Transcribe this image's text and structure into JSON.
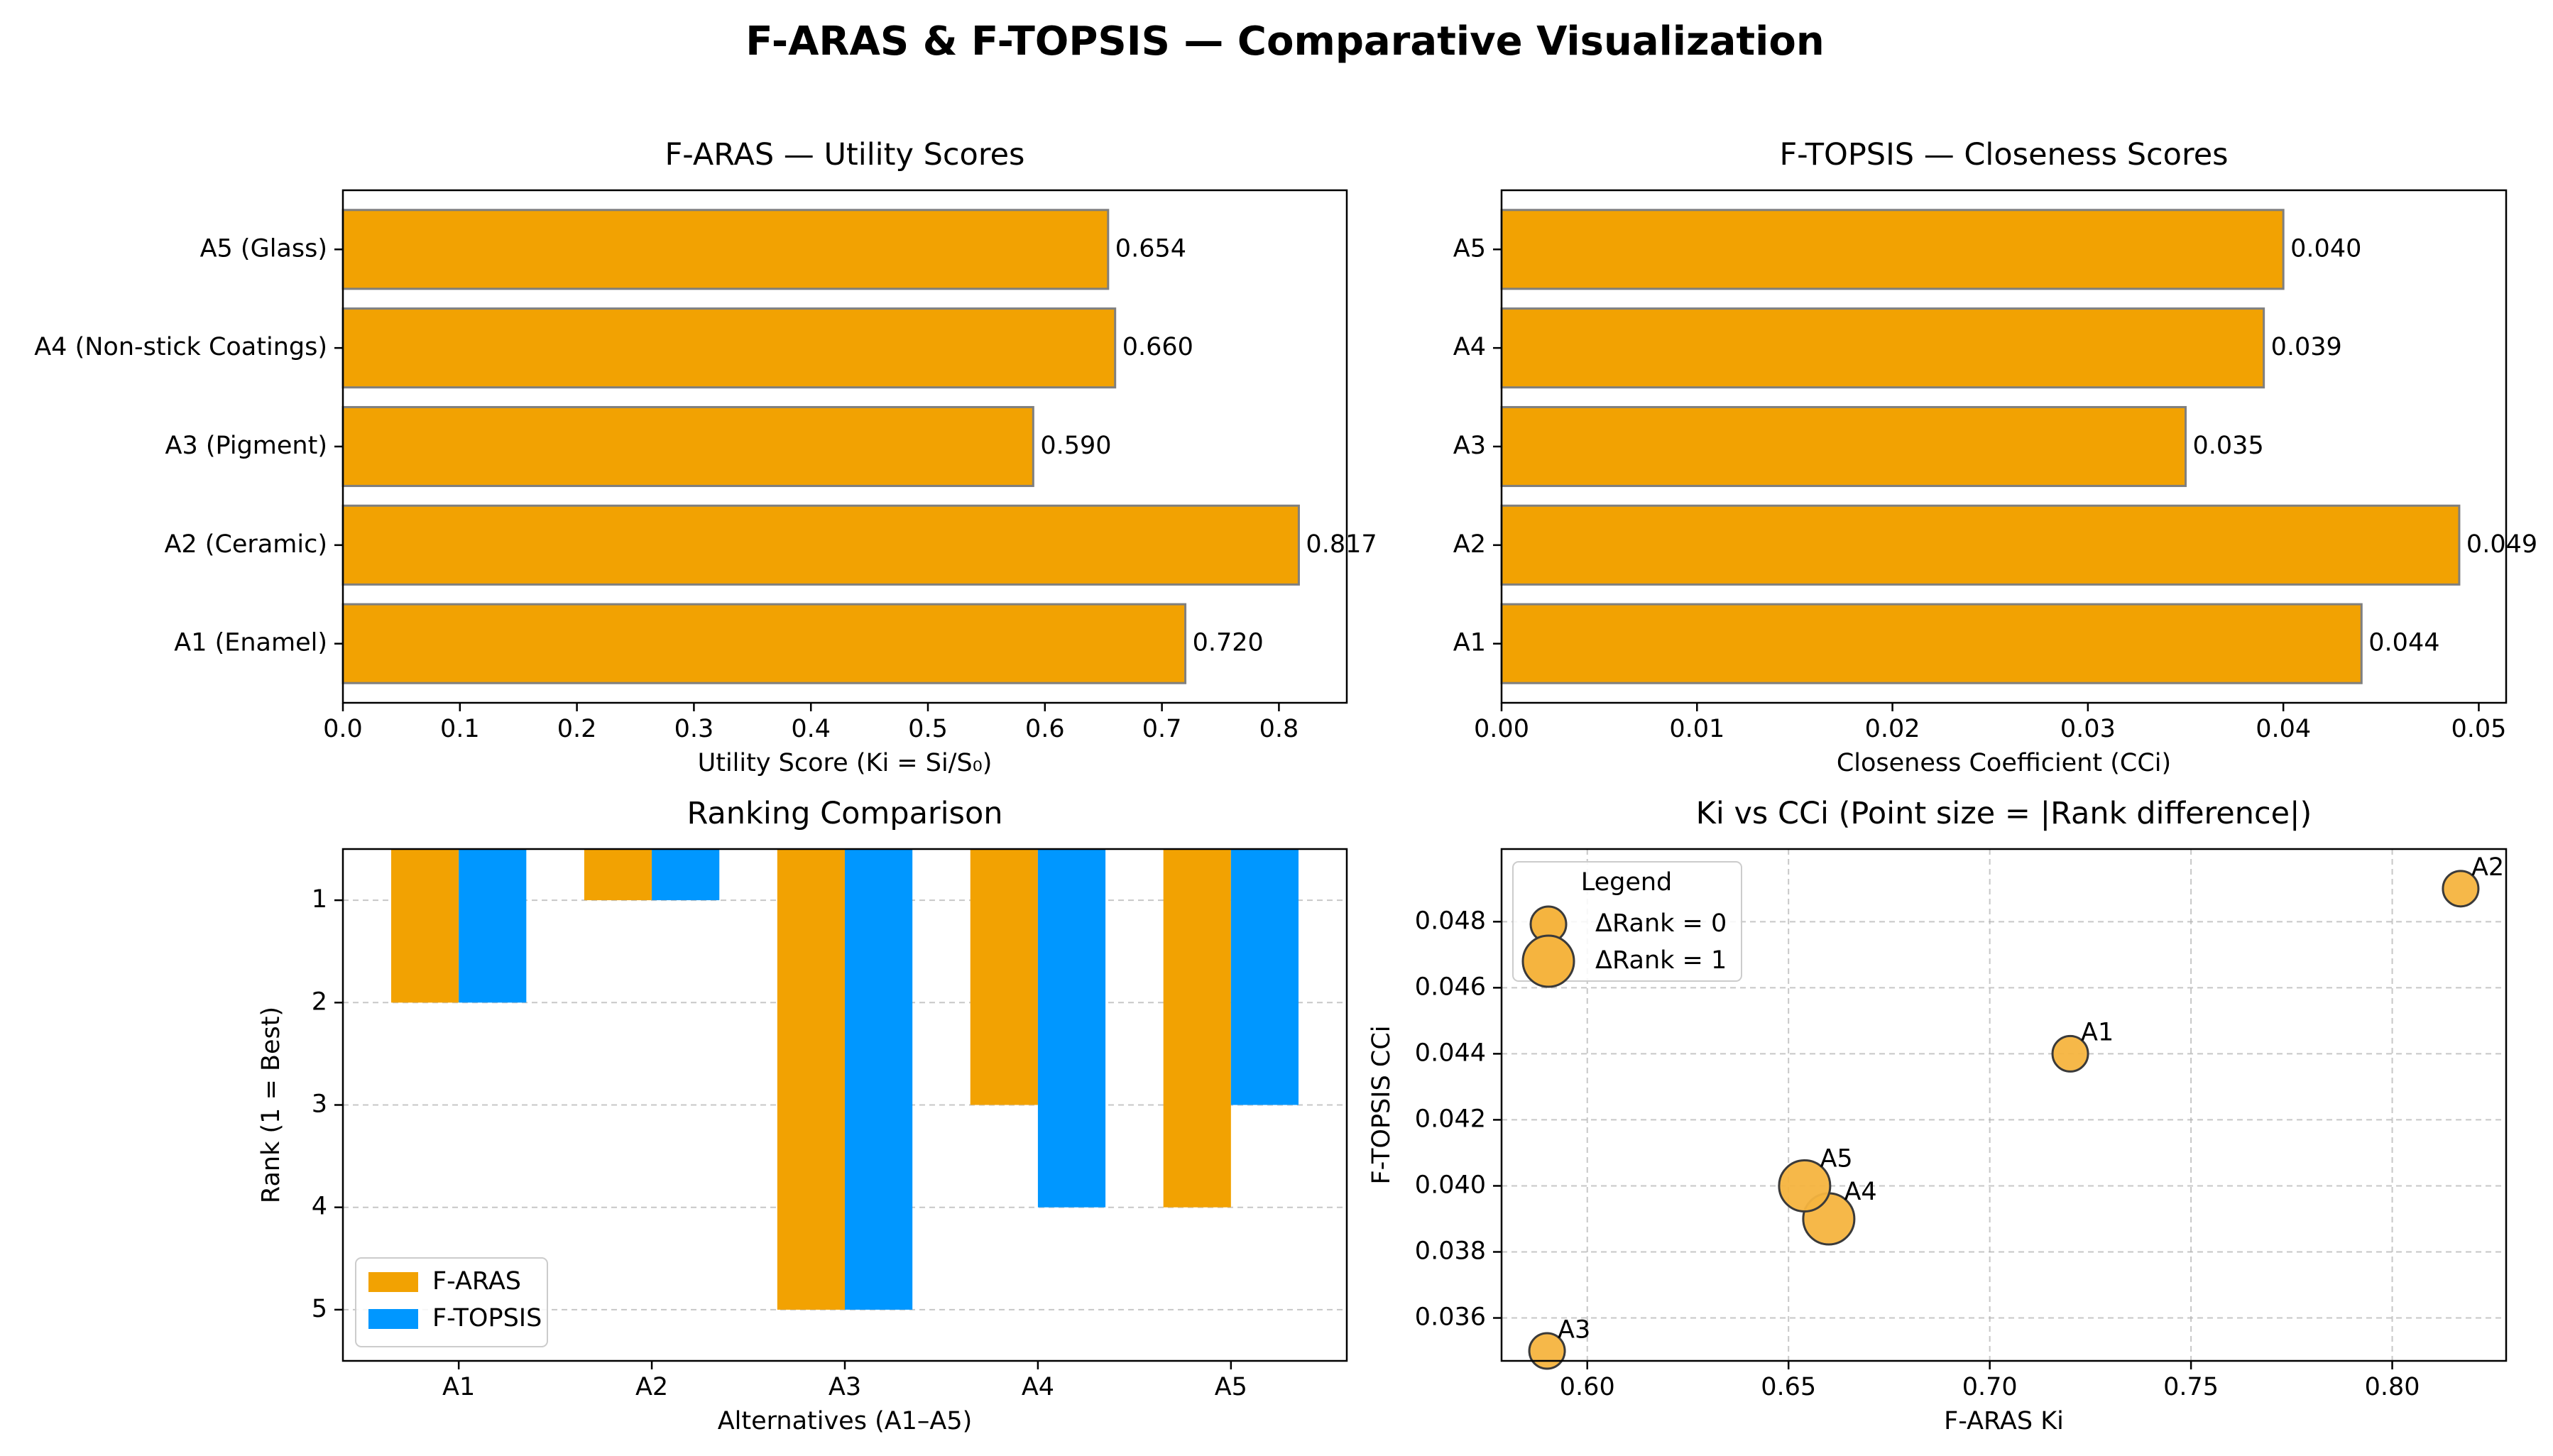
{
  "figure": {
    "title": "F-ARAS & F-TOPSIS — Comparative Visualization"
  },
  "colors": {
    "faras": "#F2A202",
    "ftopsis": "#0097FF",
    "bar_edge": "#7f7f7f",
    "scatter_fill": "#F5B43F",
    "scatter_edge": "#3a3a3a"
  },
  "chart_data": [
    {
      "id": "faras-utility",
      "type": "bar",
      "orientation": "horizontal",
      "title": "F-ARAS — Utility Scores",
      "xlabel": "Utility Score (Ki = Si/S₀)",
      "ylabel": "",
      "categories": [
        "A1 (Enamel)",
        "A2 (Ceramic)",
        "A3 (Pigment)",
        "A4 (Non-stick Coatings)",
        "A5 (Glass)"
      ],
      "values": [
        0.72,
        0.817,
        0.59,
        0.66,
        0.654
      ],
      "value_labels": [
        "0.720",
        "0.817",
        "0.590",
        "0.660",
        "0.654"
      ],
      "xlim": [
        0,
        0.858
      ],
      "xticks": [
        0.0,
        0.1,
        0.2,
        0.3,
        0.4,
        0.5,
        0.6,
        0.7,
        0.8
      ],
      "xtick_labels": [
        "0.0",
        "0.1",
        "0.2",
        "0.3",
        "0.4",
        "0.5",
        "0.6",
        "0.7",
        "0.8"
      ],
      "grid": false
    },
    {
      "id": "ftopsis-closeness",
      "type": "bar",
      "orientation": "horizontal",
      "title": "F-TOPSIS — Closeness Scores",
      "xlabel": "Closeness Coefficient (CCi)",
      "ylabel": "",
      "categories": [
        "A1",
        "A2",
        "A3",
        "A4",
        "A5"
      ],
      "values": [
        0.044,
        0.049,
        0.035,
        0.039,
        0.04
      ],
      "value_labels": [
        "0.044",
        "0.049",
        "0.035",
        "0.039",
        "0.040"
      ],
      "xlim": [
        0,
        0.0514
      ],
      "xticks": [
        0.0,
        0.01,
        0.02,
        0.03,
        0.04,
        0.05
      ],
      "xtick_labels": [
        "0.00",
        "0.01",
        "0.02",
        "0.03",
        "0.04",
        "0.05"
      ],
      "grid": false
    },
    {
      "id": "ranking-comparison",
      "type": "bar",
      "orientation": "vertical",
      "title": "Ranking Comparison",
      "xlabel": "Alternatives (A1–A5)",
      "ylabel": "Rank (1 = Best)",
      "categories": [
        "A1",
        "A2",
        "A3",
        "A4",
        "A5"
      ],
      "series": [
        {
          "name": "F-ARAS",
          "values": [
            2,
            1,
            5,
            3,
            4
          ]
        },
        {
          "name": "F-TOPSIS",
          "values": [
            2,
            1,
            5,
            4,
            3
          ]
        }
      ],
      "ylim": [
        5.5,
        0.5
      ],
      "yticks": [
        1,
        2,
        3,
        4,
        5
      ],
      "ytick_labels": [
        "1",
        "2",
        "3",
        "4",
        "5"
      ],
      "y_inverted": true,
      "grid": true,
      "legend": {
        "position": "lower-left",
        "entries": [
          "F-ARAS",
          "F-TOPSIS"
        ]
      }
    },
    {
      "id": "ki-vs-cci",
      "type": "scatter",
      "title": "Ki vs CCi (Point size = |Rank difference|)",
      "xlabel": "F-ARAS Ki",
      "ylabel": "F-TOPSIS CCi",
      "points": [
        {
          "label": "A1",
          "x": 0.72,
          "y": 0.044,
          "rank_diff": 0
        },
        {
          "label": "A2",
          "x": 0.817,
          "y": 0.049,
          "rank_diff": 0
        },
        {
          "label": "A3",
          "x": 0.59,
          "y": 0.035,
          "rank_diff": 0
        },
        {
          "label": "A4",
          "x": 0.66,
          "y": 0.039,
          "rank_diff": 1
        },
        {
          "label": "A5",
          "x": 0.654,
          "y": 0.04,
          "rank_diff": 1
        }
      ],
      "xlim": [
        0.5787,
        0.8283
      ],
      "ylim": [
        0.0347,
        0.0502
      ],
      "xticks": [
        0.6,
        0.65,
        0.7,
        0.75,
        0.8
      ],
      "xtick_labels": [
        "0.60",
        "0.65",
        "0.70",
        "0.75",
        "0.80"
      ],
      "yticks": [
        0.036,
        0.038,
        0.04,
        0.042,
        0.044,
        0.046,
        0.048
      ],
      "ytick_labels": [
        "0.036",
        "0.038",
        "0.040",
        "0.042",
        "0.044",
        "0.046",
        "0.048"
      ],
      "grid": true,
      "legend": {
        "title": "Legend",
        "position": "top-left",
        "entries": [
          {
            "label": "ΔRank = 0",
            "rank_diff": 0
          },
          {
            "label": "ΔRank = 1",
            "rank_diff": 1
          }
        ]
      }
    }
  ]
}
